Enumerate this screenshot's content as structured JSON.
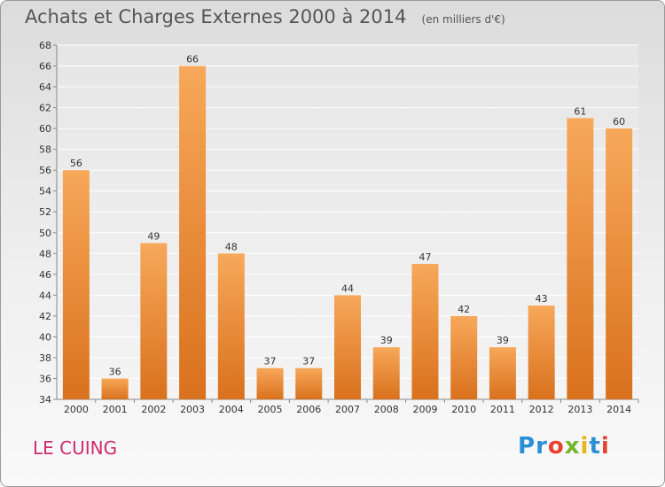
{
  "header": {
    "title": "Achats et Charges Externes 2000 à 2014",
    "unit": "(en milliers d'€)"
  },
  "footer": {
    "place": "LE CUING",
    "logo": "Proxiti"
  },
  "colors": {
    "bar_light": "#f7a85a",
    "bar_dark": "#d9711d",
    "place_text": "#cc2b6e",
    "logo_letters": [
      "#2b8fd6",
      "#2b8fd6",
      "#e8422f",
      "#76b72a",
      "#e8b520",
      "#2b8fd6",
      "#e8422f"
    ]
  },
  "chart_data": {
    "type": "bar",
    "title": "Achats et Charges Externes 2000 à 2014",
    "subtitle": "(en milliers d'€)",
    "categories": [
      "2000",
      "2001",
      "2002",
      "2003",
      "2004",
      "2005",
      "2006",
      "2007",
      "2008",
      "2009",
      "2010",
      "2011",
      "2012",
      "2013",
      "2014"
    ],
    "values": [
      56,
      36,
      49,
      66,
      48,
      37,
      37,
      44,
      39,
      47,
      42,
      39,
      43,
      61,
      60
    ],
    "ylim": [
      34,
      68
    ],
    "yticks": [
      34,
      36,
      38,
      40,
      42,
      44,
      46,
      48,
      50,
      52,
      54,
      56,
      58,
      60,
      62,
      64,
      66,
      68
    ],
    "grid": true,
    "xlabel": "",
    "ylabel": ""
  }
}
